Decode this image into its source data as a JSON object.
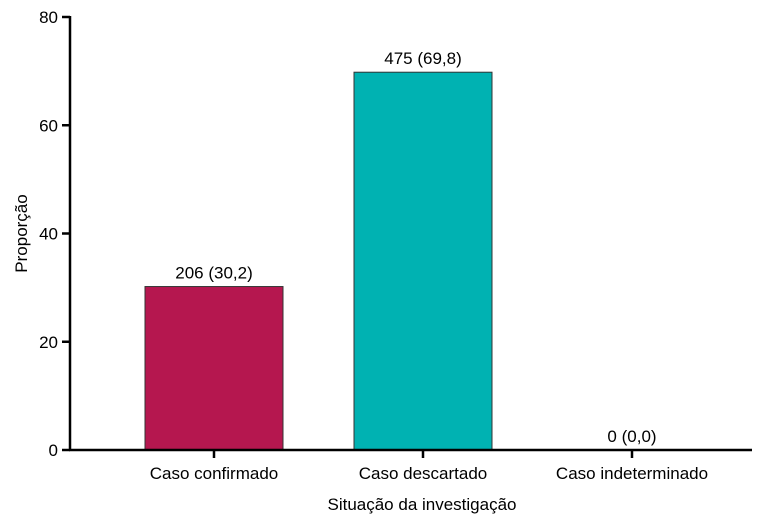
{
  "chart_data": {
    "type": "bar",
    "categories": [
      "Caso confirmado",
      "Caso descartado",
      "Caso indeterminado"
    ],
    "values": [
      30.2,
      69.8,
      0.0
    ],
    "data_labels": [
      "206 (30,2)",
      "475 (69,8)",
      "0 (0,0)"
    ],
    "colors": [
      "#B5174F",
      "#00B2B2",
      "#808080"
    ],
    "title": "",
    "xlabel": "Situação da investigação",
    "ylabel": "Proporção",
    "ylim": [
      0,
      80
    ],
    "yticks": [
      0,
      20,
      40,
      60,
      80
    ],
    "grid": false,
    "legend": "none"
  }
}
